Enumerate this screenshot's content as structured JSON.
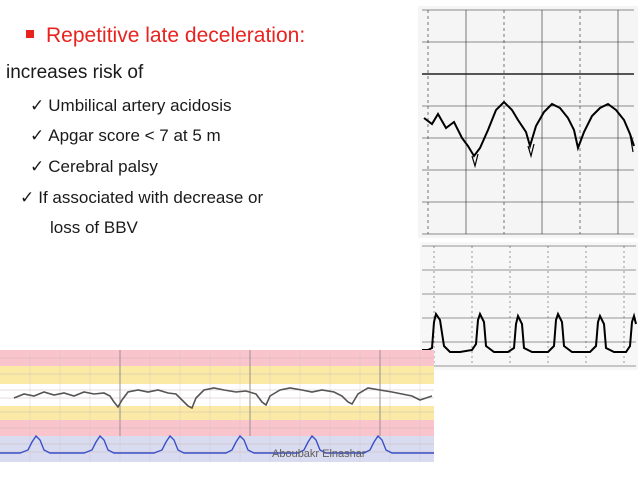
{
  "slide": {
    "title": "Repetitive late deceleration:",
    "intro": "increases risk of",
    "bullets": [
      "Umbilical artery acidosis",
      "Apgar score < 7 at 5 m",
      "Cerebral palsy"
    ],
    "associated_line1": "If associated with decrease or",
    "associated_line2": "loss of BBV",
    "footer": "Aboubakr Elnashar",
    "check_glyph": "✓"
  },
  "colors": {
    "title": "#e8231f",
    "text": "#1a1a1a",
    "footer": "#5f5f5f"
  },
  "images": [
    {
      "name": "ctg-fetal-heart-rate-strip",
      "desc_icon": "fetal-heart-rate-trace-icon"
    },
    {
      "name": "ctg-uterine-contraction-strip",
      "desc_icon": "uterine-contraction-trace-icon"
    },
    {
      "name": "ctg-color-tracing",
      "desc_icon": "cardiotocography-trace-icon"
    }
  ]
}
